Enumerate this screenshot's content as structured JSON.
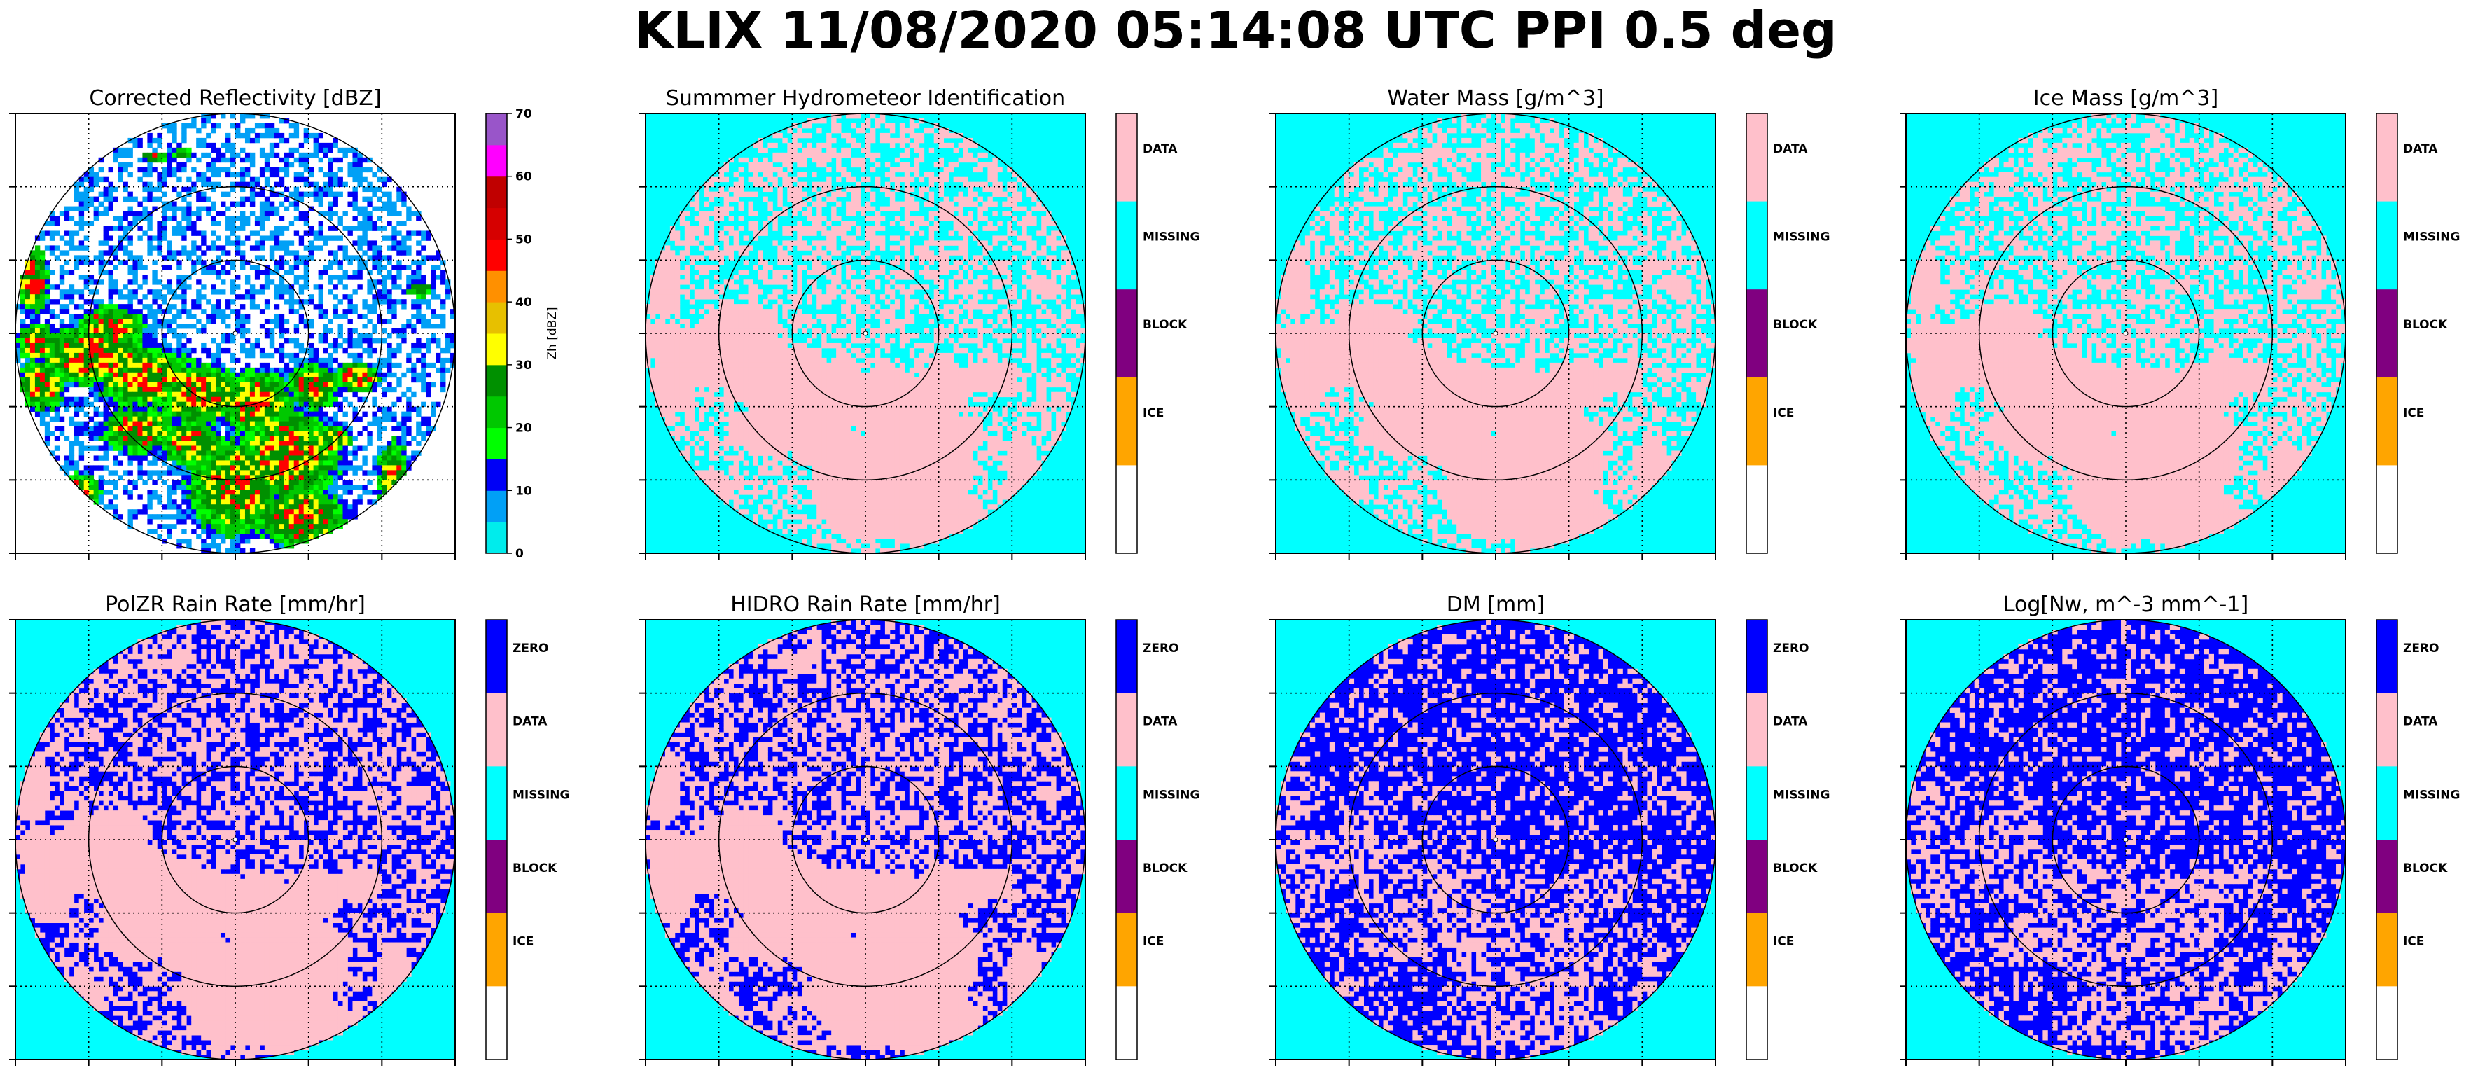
{
  "figure_title": "KLIX 11/08/2020 05:14:08 UTC PPI 0.5 deg",
  "colors": {
    "background_field": "#00ffff",
    "data": "#ffc0cb",
    "missing": "#00ffff",
    "block": "#800080",
    "ice": "#ffa500",
    "zero": "#0000ff",
    "blank": "#ffffff",
    "rings": "#000000",
    "grid": "#000000"
  },
  "chart_data": [
    {
      "type": "heatmap",
      "title": "Corrected Reflectivity [dBZ]",
      "colorbar": {
        "kind": "continuous",
        "label": "Zh [dBZ]",
        "ticks": [
          "0",
          "10",
          "20",
          "30",
          "40",
          "50",
          "60",
          "70"
        ],
        "range": [
          0,
          70
        ],
        "segments": [
          "#00ecec",
          "#01a0f6",
          "#0000f6",
          "#00ff00",
          "#00c800",
          "#009000",
          "#ffff00",
          "#e7c000",
          "#ff9000",
          "#ff0000",
          "#d60000",
          "#c00000",
          "#ff00ff",
          "#9955c9"
        ]
      },
      "field": "reflectivity",
      "range_rings": 3,
      "grid": "dotted"
    },
    {
      "type": "heatmap",
      "title": "Summmer Hydrometeor Identification",
      "colorbar": {
        "kind": "categorical",
        "labels": [
          "DATA",
          "MISSING",
          "BLOCK",
          "ICE",
          ""
        ],
        "colors": [
          "#ffc0cb",
          "#00ffff",
          "#800080",
          "#ffa500",
          "#ffffff"
        ]
      },
      "field": "data-mask",
      "range_rings": 3,
      "grid": "dotted"
    },
    {
      "type": "heatmap",
      "title": "Water Mass [g/m^3]",
      "colorbar": {
        "kind": "categorical",
        "labels": [
          "DATA",
          "MISSING",
          "BLOCK",
          "ICE",
          ""
        ],
        "colors": [
          "#ffc0cb",
          "#00ffff",
          "#800080",
          "#ffa500",
          "#ffffff"
        ]
      },
      "field": "data-mask",
      "range_rings": 3,
      "grid": "dotted"
    },
    {
      "type": "heatmap",
      "title": "Ice Mass [g/m^3]",
      "colorbar": {
        "kind": "categorical",
        "labels": [
          "DATA",
          "MISSING",
          "BLOCK",
          "ICE",
          ""
        ],
        "colors": [
          "#ffc0cb",
          "#00ffff",
          "#800080",
          "#ffa500",
          "#ffffff"
        ]
      },
      "field": "data-mask",
      "range_rings": 3,
      "grid": "dotted"
    },
    {
      "type": "heatmap",
      "title": "PolZR Rain Rate [mm/hr]",
      "colorbar": {
        "kind": "categorical",
        "labels": [
          "ZERO",
          "DATA",
          "MISSING",
          "BLOCK",
          "ICE",
          ""
        ],
        "colors": [
          "#0000ff",
          "#ffc0cb",
          "#00ffff",
          "#800080",
          "#ffa500",
          "#ffffff"
        ]
      },
      "field": "rain-mask",
      "range_rings": 3,
      "grid": "dotted"
    },
    {
      "type": "heatmap",
      "title": "HIDRO Rain Rate [mm/hr]",
      "colorbar": {
        "kind": "categorical",
        "labels": [
          "ZERO",
          "DATA",
          "MISSING",
          "BLOCK",
          "ICE",
          ""
        ],
        "colors": [
          "#0000ff",
          "#ffc0cb",
          "#00ffff",
          "#800080",
          "#ffa500",
          "#ffffff"
        ]
      },
      "field": "rain-mask",
      "range_rings": 3,
      "grid": "dotted"
    },
    {
      "type": "heatmap",
      "title": "DM [mm]",
      "colorbar": {
        "kind": "categorical",
        "labels": [
          "ZERO",
          "DATA",
          "MISSING",
          "BLOCK",
          "ICE",
          ""
        ],
        "colors": [
          "#0000ff",
          "#ffc0cb",
          "#00ffff",
          "#800080",
          "#ffa500",
          "#ffffff"
        ]
      },
      "field": "speckled-rain-mask",
      "range_rings": 3,
      "grid": "dotted"
    },
    {
      "type": "heatmap",
      "title": "Log[Nw, m^-3 mm^-1]",
      "colorbar": {
        "kind": "categorical",
        "labels": [
          "ZERO",
          "DATA",
          "MISSING",
          "BLOCK",
          "ICE",
          ""
        ],
        "colors": [
          "#0000ff",
          "#ffc0cb",
          "#00ffff",
          "#800080",
          "#ffa500",
          "#ffffff"
        ]
      },
      "field": "speckled-rain-mask",
      "range_rings": 3,
      "grid": "dotted"
    }
  ]
}
